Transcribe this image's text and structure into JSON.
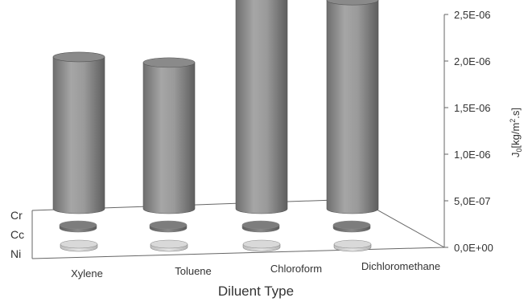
{
  "chart_data": {
    "type": "bar3d",
    "categories": [
      "Xylene",
      "Toluene",
      "Chloroform",
      "Dichloromethane"
    ],
    "depth_categories": [
      "Cr",
      "Cc",
      "Ni"
    ],
    "series": [
      {
        "name": "Cr",
        "values": [
          1.63e-06,
          1.57e-06,
          2.47e-06,
          2.24e-06
        ]
      },
      {
        "name": "Cc",
        "values": [
          0,
          0,
          0,
          0
        ]
      },
      {
        "name": "Ni",
        "values": [
          0,
          0,
          0,
          0
        ]
      }
    ],
    "xlabel": "Diluent Type",
    "ylabel": "J",
    "ylabel_sub": "0",
    "ylabel_unit": "[kg/m",
    "ylabel_sup": "2",
    "ylabel_unit_end": ".s]",
    "ylim": [
      0,
      2.5e-06
    ],
    "yticks": [
      "0,0E+00",
      "5,0E-07",
      "1,0E-06",
      "1,5E-06",
      "2,0E-06",
      "2,5E-06"
    ],
    "colors": {
      "Cr": "#8c8c8c",
      "Cc": "#7a7a7a",
      "Ni": "#cfcfcf",
      "axis": "#666666"
    }
  }
}
